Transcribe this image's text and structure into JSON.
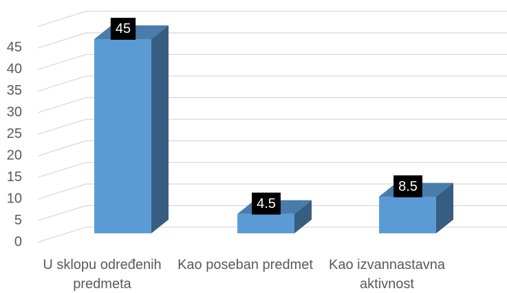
{
  "chart_data": {
    "type": "bar3d",
    "categories": [
      "U sklopu određenih predmeta",
      "Kao poseban predmet",
      "Kao izvannastavna aktivnost"
    ],
    "values": [
      45,
      4.5,
      8.5
    ],
    "color": "#5b9bd5",
    "ylim": [
      0,
      50
    ],
    "yticks": [
      0,
      5,
      10,
      15,
      20,
      25,
      30,
      35,
      40,
      45
    ],
    "grid": true
  }
}
